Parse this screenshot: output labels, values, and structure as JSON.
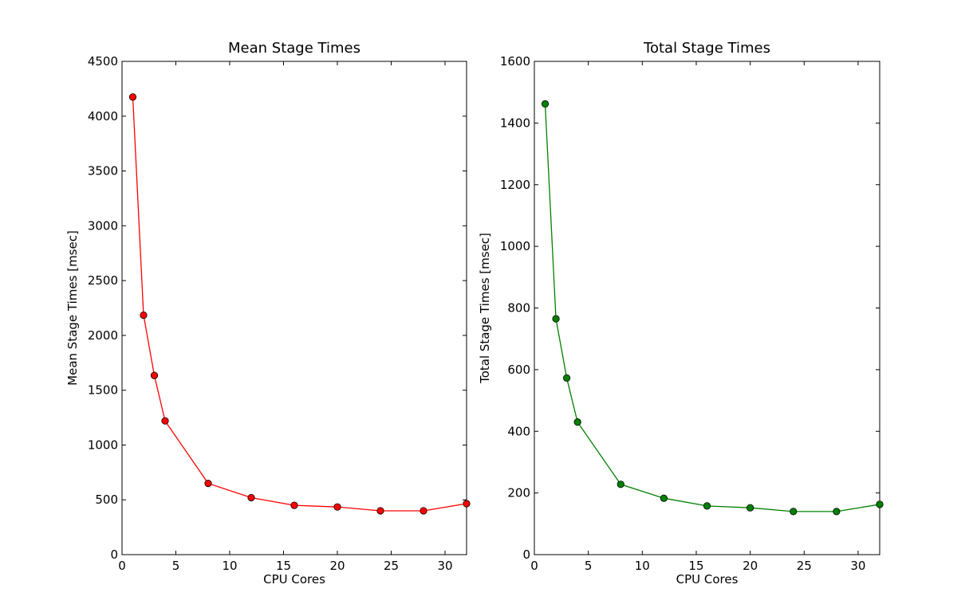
{
  "chart_data": [
    {
      "type": "line",
      "title": "Mean Stage Times",
      "xlabel": "CPU Cores",
      "ylabel": "Mean Stage Times [msec]",
      "xlim": [
        0,
        32
      ],
      "ylim": [
        0,
        4500
      ],
      "xticks": [
        0,
        5,
        10,
        15,
        20,
        25,
        30
      ],
      "yticks": [
        0,
        500,
        1000,
        1500,
        2000,
        2500,
        3000,
        3500,
        4000,
        4500
      ],
      "grid": false,
      "series": [
        {
          "color": "#ff0000",
          "marker": "circle",
          "x": [
            1,
            2,
            3,
            4,
            8,
            12,
            16,
            20,
            24,
            28,
            32
          ],
          "y": [
            4175,
            2185,
            1635,
            1220,
            650,
            520,
            450,
            435,
            400,
            400,
            465
          ]
        }
      ]
    },
    {
      "type": "line",
      "title": "Total Stage Times",
      "xlabel": "CPU Cores",
      "ylabel": "Total Stage Times [msec]",
      "xlim": [
        0,
        32
      ],
      "ylim": [
        0,
        1600
      ],
      "xticks": [
        0,
        5,
        10,
        15,
        20,
        25,
        30
      ],
      "yticks": [
        0,
        200,
        400,
        600,
        800,
        1000,
        1200,
        1400,
        1600
      ],
      "grid": false,
      "series": [
        {
          "color": "#008000",
          "marker": "circle",
          "x": [
            1,
            2,
            3,
            4,
            8,
            12,
            16,
            20,
            24,
            28,
            32
          ],
          "y": [
            1462,
            765,
            573,
            430,
            228,
            183,
            158,
            152,
            140,
            140,
            163
          ]
        }
      ]
    }
  ]
}
